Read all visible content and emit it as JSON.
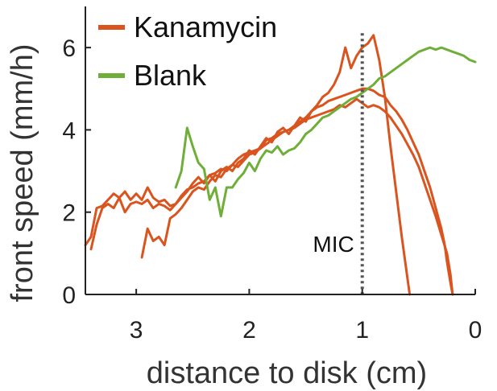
{
  "chart_data": {
    "type": "line",
    "xlabel": "distance to disk (cm)",
    "ylabel": "front speed (mm/h)",
    "xlim": [
      3.45,
      0
    ],
    "ylim": [
      0,
      7
    ],
    "xticks": [
      3,
      2,
      1,
      0
    ],
    "yticks": [
      0,
      2,
      4,
      6
    ],
    "x_reversed": true,
    "legend_position": "top-left",
    "colors": {
      "kanamycin": "#d9541e",
      "blank": "#6fae38",
      "mic": "#555555"
    },
    "annotations": [
      {
        "text": "MIC",
        "x": 1.0,
        "style": "dotted-vertical-line"
      }
    ],
    "series": [
      {
        "name": "Kanamycin",
        "color": "#d9541e",
        "points": [
          [
            3.45,
            1.2
          ],
          [
            3.4,
            1.4
          ],
          [
            3.35,
            2.1
          ],
          [
            3.3,
            2.15
          ],
          [
            3.25,
            2.3
          ],
          [
            3.2,
            2.45
          ],
          [
            3.15,
            2.35
          ],
          [
            3.1,
            2.5
          ],
          [
            3.05,
            2.3
          ],
          [
            3.0,
            2.45
          ],
          [
            2.95,
            2.3
          ],
          [
            2.9,
            2.6
          ],
          [
            2.85,
            2.35
          ],
          [
            2.8,
            2.25
          ],
          [
            2.75,
            2.3
          ],
          [
            2.7,
            2.15
          ],
          [
            2.65,
            2.2
          ],
          [
            2.6,
            2.35
          ],
          [
            2.55,
            2.5
          ],
          [
            2.5,
            2.7
          ],
          [
            2.45,
            2.85
          ],
          [
            2.4,
            2.7
          ],
          [
            2.35,
            2.9
          ],
          [
            2.3,
            2.75
          ],
          [
            2.25,
            3.0
          ],
          [
            2.2,
            3.1
          ],
          [
            2.15,
            3.0
          ],
          [
            2.1,
            3.2
          ],
          [
            2.05,
            3.3
          ],
          [
            2.0,
            3.5
          ],
          [
            1.95,
            3.4
          ],
          [
            1.9,
            3.6
          ],
          [
            1.85,
            3.8
          ],
          [
            1.8,
            3.7
          ],
          [
            1.75,
            3.95
          ],
          [
            1.7,
            4.05
          ],
          [
            1.65,
            3.9
          ],
          [
            1.6,
            4.1
          ],
          [
            1.55,
            4.3
          ],
          [
            1.5,
            4.2
          ],
          [
            1.45,
            4.45
          ],
          [
            1.4,
            4.6
          ],
          [
            1.35,
            4.8
          ],
          [
            1.3,
            4.9
          ],
          [
            1.25,
            5.1
          ],
          [
            1.2,
            5.4
          ],
          [
            1.15,
            6.0
          ],
          [
            1.12,
            5.7
          ],
          [
            1.1,
            5.5
          ],
          [
            1.05,
            5.8
          ],
          [
            1.0,
            6.0
          ],
          [
            0.95,
            6.1
          ],
          [
            0.9,
            6.3
          ],
          [
            0.85,
            5.7
          ],
          [
            0.8,
            4.8
          ],
          [
            0.75,
            3.6
          ],
          [
            0.7,
            2.5
          ],
          [
            0.65,
            1.4
          ],
          [
            0.6,
            0.4
          ],
          [
            0.58,
            0.0
          ]
        ]
      },
      {
        "name": "",
        "color": "#d9541e",
        "points": [
          [
            3.4,
            1.1
          ],
          [
            3.35,
            1.7
          ],
          [
            3.3,
            2.1
          ],
          [
            3.25,
            2.2
          ],
          [
            3.2,
            2.1
          ],
          [
            3.15,
            2.35
          ],
          [
            3.1,
            2.0
          ],
          [
            3.05,
            2.2
          ],
          [
            3.0,
            2.25
          ],
          [
            2.95,
            2.2
          ],
          [
            2.9,
            2.3
          ],
          [
            2.85,
            2.1
          ],
          [
            2.8,
            2.2
          ],
          [
            2.75,
            2.15
          ],
          [
            2.7,
            2.05
          ],
          [
            2.65,
            2.2
          ],
          [
            2.6,
            2.4
          ],
          [
            2.55,
            2.55
          ],
          [
            2.5,
            2.6
          ],
          [
            2.45,
            2.7
          ],
          [
            2.4,
            2.75
          ],
          [
            2.35,
            2.9
          ],
          [
            2.3,
            2.95
          ],
          [
            2.25,
            3.05
          ],
          [
            2.2,
            3.0
          ],
          [
            2.15,
            3.15
          ],
          [
            2.1,
            3.3
          ],
          [
            2.05,
            3.4
          ],
          [
            2.0,
            3.45
          ],
          [
            1.95,
            3.5
          ],
          [
            1.9,
            3.55
          ],
          [
            1.85,
            3.75
          ],
          [
            1.8,
            3.8
          ],
          [
            1.75,
            3.9
          ],
          [
            1.7,
            3.95
          ],
          [
            1.65,
            4.0
          ],
          [
            1.6,
            4.05
          ],
          [
            1.55,
            4.15
          ],
          [
            1.5,
            4.25
          ],
          [
            1.45,
            4.3
          ],
          [
            1.4,
            4.35
          ],
          [
            1.35,
            4.4
          ],
          [
            1.3,
            4.45
          ],
          [
            1.25,
            4.5
          ],
          [
            1.2,
            4.6
          ],
          [
            1.15,
            4.55
          ],
          [
            1.1,
            4.65
          ],
          [
            1.05,
            4.75
          ],
          [
            1.0,
            4.65
          ],
          [
            0.95,
            4.55
          ],
          [
            0.9,
            4.6
          ],
          [
            0.85,
            4.55
          ],
          [
            0.8,
            4.45
          ],
          [
            0.75,
            4.3
          ],
          [
            0.7,
            4.1
          ],
          [
            0.65,
            3.9
          ],
          [
            0.6,
            3.65
          ],
          [
            0.55,
            3.4
          ],
          [
            0.5,
            3.1
          ],
          [
            0.45,
            2.7
          ],
          [
            0.4,
            2.3
          ],
          [
            0.35,
            1.9
          ],
          [
            0.3,
            1.45
          ],
          [
            0.25,
            1.0
          ],
          [
            0.22,
            0.5
          ],
          [
            0.2,
            0.0
          ]
        ]
      },
      {
        "name": "",
        "color": "#d9541e",
        "points": [
          [
            2.95,
            0.9
          ],
          [
            2.9,
            1.6
          ],
          [
            2.85,
            1.3
          ],
          [
            2.8,
            1.4
          ],
          [
            2.75,
            1.2
          ],
          [
            2.7,
            1.85
          ],
          [
            2.65,
            1.95
          ],
          [
            2.6,
            2.1
          ],
          [
            2.55,
            2.3
          ],
          [
            2.5,
            2.5
          ],
          [
            2.45,
            2.6
          ],
          [
            2.4,
            2.55
          ],
          [
            2.35,
            2.75
          ],
          [
            2.3,
            2.9
          ],
          [
            2.25,
            2.85
          ],
          [
            2.2,
            3.05
          ],
          [
            2.15,
            3.15
          ],
          [
            2.1,
            3.1
          ],
          [
            2.05,
            3.25
          ],
          [
            2.0,
            3.4
          ],
          [
            1.95,
            3.45
          ],
          [
            1.9,
            3.55
          ],
          [
            1.85,
            3.65
          ],
          [
            1.8,
            3.75
          ],
          [
            1.75,
            3.85
          ],
          [
            1.7,
            3.95
          ],
          [
            1.65,
            4.0
          ],
          [
            1.6,
            4.1
          ],
          [
            1.55,
            4.2
          ],
          [
            1.5,
            4.3
          ],
          [
            1.45,
            4.45
          ],
          [
            1.4,
            4.55
          ],
          [
            1.35,
            4.6
          ],
          [
            1.3,
            4.7
          ],
          [
            1.25,
            4.75
          ],
          [
            1.2,
            4.8
          ],
          [
            1.15,
            4.85
          ],
          [
            1.1,
            4.9
          ],
          [
            1.05,
            4.95
          ],
          [
            1.0,
            5.0
          ],
          [
            0.95,
            5.0
          ],
          [
            0.9,
            4.95
          ],
          [
            0.85,
            4.85
          ],
          [
            0.8,
            4.8
          ],
          [
            0.75,
            4.6
          ],
          [
            0.7,
            4.45
          ],
          [
            0.65,
            4.25
          ],
          [
            0.6,
            4.0
          ],
          [
            0.55,
            3.7
          ],
          [
            0.5,
            3.4
          ],
          [
            0.45,
            3.0
          ],
          [
            0.4,
            2.6
          ],
          [
            0.35,
            2.1
          ],
          [
            0.3,
            1.6
          ],
          [
            0.27,
            1.2
          ],
          [
            0.25,
            0.8
          ],
          [
            0.22,
            0.3
          ],
          [
            0.2,
            0.0
          ]
        ]
      },
      {
        "name": "Blank",
        "color": "#6fae38",
        "points": [
          [
            2.65,
            2.6
          ],
          [
            2.6,
            3.0
          ],
          [
            2.55,
            4.05
          ],
          [
            2.5,
            3.6
          ],
          [
            2.45,
            3.2
          ],
          [
            2.4,
            3.05
          ],
          [
            2.35,
            2.3
          ],
          [
            2.3,
            2.6
          ],
          [
            2.25,
            1.9
          ],
          [
            2.2,
            2.6
          ],
          [
            2.15,
            2.6
          ],
          [
            2.1,
            2.8
          ],
          [
            2.05,
            2.95
          ],
          [
            2.0,
            3.2
          ],
          [
            1.95,
            3.0
          ],
          [
            1.9,
            3.3
          ],
          [
            1.85,
            3.5
          ],
          [
            1.8,
            3.45
          ],
          [
            1.75,
            3.6
          ],
          [
            1.7,
            3.4
          ],
          [
            1.65,
            3.5
          ],
          [
            1.6,
            3.55
          ],
          [
            1.55,
            3.7
          ],
          [
            1.5,
            3.9
          ],
          [
            1.45,
            4.0
          ],
          [
            1.4,
            4.15
          ],
          [
            1.35,
            4.3
          ],
          [
            1.3,
            4.35
          ],
          [
            1.25,
            4.45
          ],
          [
            1.2,
            4.55
          ],
          [
            1.15,
            4.65
          ],
          [
            1.1,
            4.75
          ],
          [
            1.05,
            4.8
          ],
          [
            1.0,
            4.9
          ],
          [
            0.95,
            5.0
          ],
          [
            0.9,
            5.1
          ],
          [
            0.85,
            5.25
          ],
          [
            0.8,
            5.3
          ],
          [
            0.75,
            5.4
          ],
          [
            0.7,
            5.5
          ],
          [
            0.65,
            5.6
          ],
          [
            0.6,
            5.7
          ],
          [
            0.55,
            5.8
          ],
          [
            0.5,
            5.9
          ],
          [
            0.45,
            5.95
          ],
          [
            0.4,
            6.0
          ],
          [
            0.35,
            5.95
          ],
          [
            0.3,
            6.0
          ],
          [
            0.25,
            5.95
          ],
          [
            0.2,
            5.9
          ],
          [
            0.15,
            5.85
          ],
          [
            0.1,
            5.8
          ],
          [
            0.05,
            5.7
          ],
          [
            0.0,
            5.65
          ]
        ]
      }
    ]
  }
}
